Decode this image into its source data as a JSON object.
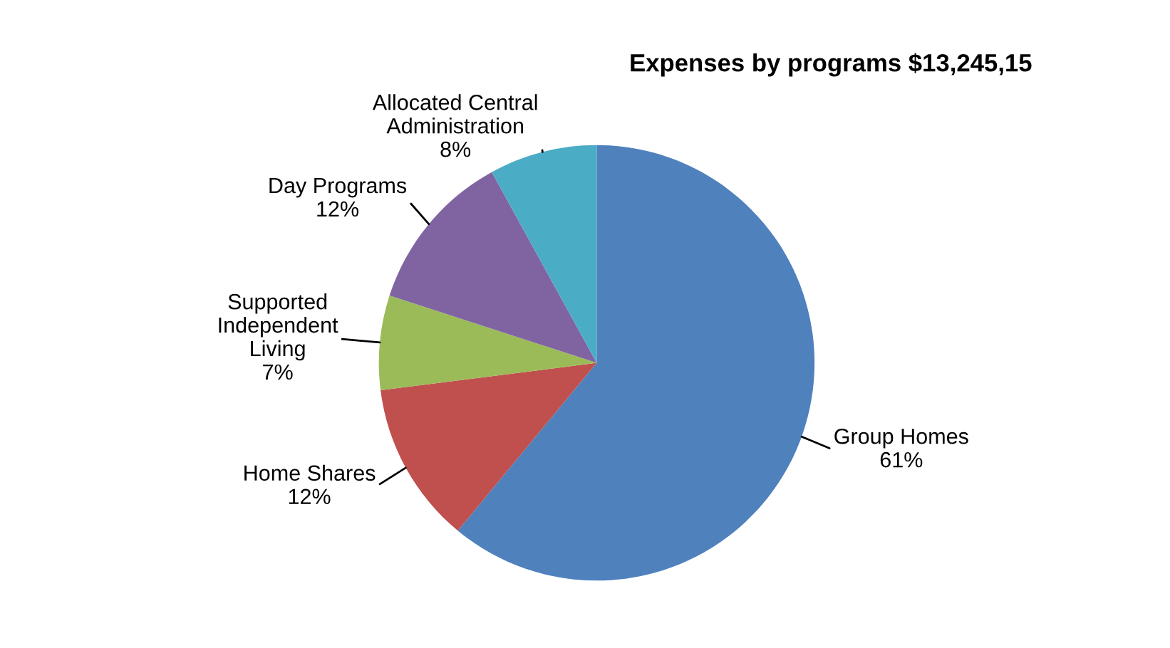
{
  "chart_data": {
    "type": "pie",
    "title": "Expenses by programs $13,245,15",
    "categories": [
      "Group Homes",
      "Home Shares",
      "Supported Independent Living",
      "Day Programs",
      "Allocated Central Administration"
    ],
    "values": [
      61,
      12,
      7,
      12,
      8
    ],
    "value_labels": [
      "61%",
      "12%",
      "7%",
      "12%",
      "8%"
    ],
    "colors": [
      "#4f81bd",
      "#c0504d",
      "#9bbb59",
      "#8064a2",
      "#4bacc6"
    ],
    "legend": false
  }
}
